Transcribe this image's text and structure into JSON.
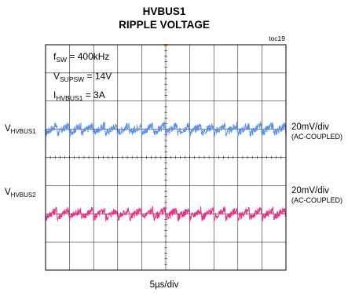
{
  "title": {
    "line1": "HVBUS1",
    "line2": "RIPPLE VOLTAGE"
  },
  "toc": "toc19",
  "params": {
    "fsw_main": "f",
    "fsw_sub": "SW",
    "fsw_value": " = 400kHz",
    "vsupsw_main": "V",
    "vsupsw_sub": "SUPSW",
    "vsupsw_value": " = 14V",
    "ihvbus_main": "I",
    "ihvbus_sub": "HVBUS1",
    "ihvbus_value": " = 3A"
  },
  "chart_data": {
    "type": "line",
    "grid": true,
    "divisions": {
      "horizontal": 10,
      "vertical": 8
    },
    "timebase": "5µs/div",
    "series": [
      {
        "name": "HVBUS1",
        "label_main": "V",
        "label_sub": "HVBUS1",
        "scale": "20mV/div",
        "coupling": "(AC-COUPLED)",
        "color": "#5b8fe8",
        "center_div": 5,
        "ripple_period_us": 2.5,
        "ripple_amplitude_div": 0.3
      },
      {
        "name": "HVBUS2",
        "label_main": "V",
        "label_sub": "HVBUS2",
        "scale": "20mV/div",
        "coupling": "(AC-COUPLED)",
        "color": "#e8308a",
        "center_div": 2,
        "ripple_period_us": 2.5,
        "ripple_amplitude_div": 0.3
      }
    ]
  }
}
